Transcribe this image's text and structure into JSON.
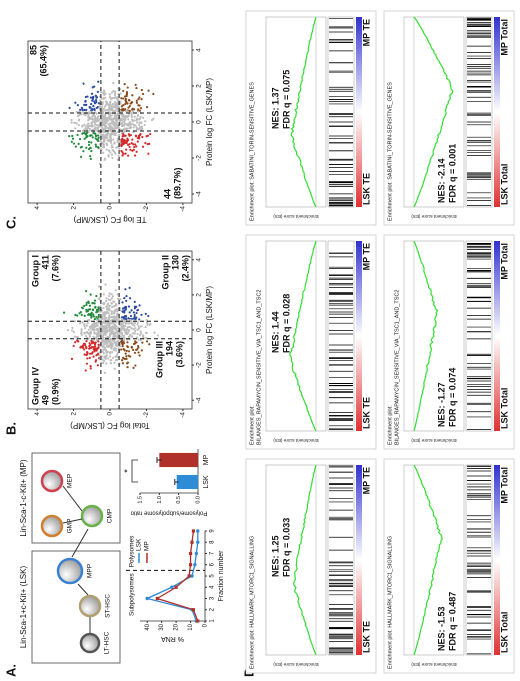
{
  "panel_labels": [
    "A.",
    "B.",
    "C.",
    "D."
  ],
  "panel_a": {
    "lsk_label": "Lin-Sca-1+c-Kit+ (LSK)",
    "mp_label": "Lin-Sca-1-c-Kit+ (MP)",
    "cells": [
      "LT-HSC",
      "ST-HSC",
      "MPP",
      "CMP",
      "GMP",
      "MEP"
    ],
    "polysome": {
      "type": "line",
      "ylabel": "% RNA",
      "xlabel": "Fraction number",
      "regions": [
        "Subpolysomes",
        "Polysomes"
      ],
      "x": [
        1,
        2,
        3,
        4,
        5,
        6,
        7,
        8,
        9
      ],
      "xlim": [
        1,
        9
      ],
      "xticks": [
        1,
        2,
        3,
        4,
        5,
        6,
        7,
        8,
        9
      ],
      "ylim": [
        0,
        45
      ],
      "yticks": [
        0,
        10,
        20,
        30,
        40
      ],
      "divider": 5.5,
      "series": [
        {
          "name": "LSK",
          "color": "#2e8bd6",
          "values": [
            6,
            9,
            40,
            23,
            9,
            7,
            6,
            5,
            5
          ]
        },
        {
          "name": "MP",
          "color": "#b0302a",
          "values": [
            5,
            8,
            33,
            20,
            11,
            10,
            10,
            9,
            8
          ]
        }
      ]
    },
    "ratio": {
      "type": "bar",
      "ylabel": "Polysome/subpolysome ratio",
      "categories": [
        "LSK",
        "MP"
      ],
      "values": [
        0.55,
        1.0
      ],
      "errors": [
        0.05,
        0.06
      ],
      "colors": [
        "#2e8bd6",
        "#b0302a"
      ],
      "ylim": [
        0,
        1.5
      ],
      "yticks": [
        {
          "value": 0,
          "label": "0.0"
        },
        {
          "value": 0.5,
          "label": "0.5"
        },
        {
          "value": 1,
          "label": "1.0"
        },
        {
          "value": 1.5,
          "label": "1.5"
        }
      ],
      "significance": "*"
    }
  },
  "panel_b": {
    "type": "scatter",
    "xlabel": "Protein log FC (LSK/MP)",
    "ylabel": "Total log FC (LSK/MP)",
    "xlim": [
      -4.5,
      4.5
    ],
    "xticks": [
      -4,
      -2,
      0,
      2,
      4
    ],
    "ylim": [
      -4.5,
      4.5
    ],
    "yticks": [
      -4,
      -2,
      0,
      2,
      4
    ],
    "groups": [
      {
        "name": "Group I",
        "count": "411",
        "pct": "(7.6%)",
        "color": "#1e8a3a"
      },
      {
        "name": "Group II",
        "count": "130",
        "pct": "(2.4%)",
        "color": "#2b4aa0"
      },
      {
        "name": "Group III",
        "count": "194",
        "pct": "(3.6%)",
        "color": "#8a4a1c"
      },
      {
        "name": "Group IV",
        "count": "49",
        "pct": "(0.9%)",
        "color": "#d42a2a"
      }
    ]
  },
  "panel_c": {
    "type": "scatter",
    "xlabel": "Protein log FC (LSK/MP)",
    "ylabel": "TE log FC (LSK/MP)",
    "xlim": [
      -4.5,
      4.5
    ],
    "xticks": [
      -4,
      -2,
      0,
      2,
      4
    ],
    "ylim": [
      -4.5,
      4.5
    ],
    "yticks": [
      -4,
      -2,
      0,
      2,
      4
    ],
    "groups": [
      {
        "count": "85",
        "pct": "(65.4%)",
        "color": "#2b4aa0"
      },
      {
        "count": "44",
        "pct": "(89.7%)",
        "color": "#d42a2a"
      }
    ]
  },
  "panel_d": {
    "ylabel": "Enrichment score (ES)",
    "plots": [
      {
        "title": [
          "Enrichment plot: HALLMARK_MTORC1_SIGNALLING"
        ],
        "nes": 1.25,
        "nes_label": "NES: 1.25",
        "fdr": "FDR q = 0.033",
        "left": "LSK TE",
        "right": "MP TE"
      },
      {
        "title": [
          "Enrichment plot:",
          "BILANGES_RAPAMYCIN_SENSITIVE_VIA_TSC1_AND_TSC2"
        ],
        "nes": 1.44,
        "nes_label": "NES: 1.44",
        "fdr": "FDR q = 0.028",
        "left": "LSK TE",
        "right": "MP TE"
      },
      {
        "title": [
          "Enrichment plot: SABATINI_TORIN-SENSITIVE_GENES"
        ],
        "nes": 1.37,
        "nes_label": "NES: 1.37",
        "fdr": "FDR q = 0.075",
        "left": "LSK TE",
        "right": "MP TE"
      },
      {
        "title": [
          "Enrichment plot: HALLMARK_MTORC1_SIGNALLING"
        ],
        "nes": -1.53,
        "nes_label": "NES: -1.53",
        "fdr": "FDR q = 0.487",
        "left": "LSK Total",
        "right": "MP Total"
      },
      {
        "title": [
          "Enrichment plot:",
          "BILANGES_RAPAMYCIN_SENSITIVE_VIA_TSC1_AND_TSC2"
        ],
        "nes": -1.27,
        "nes_label": "NES: -1.27",
        "fdr": "FDR q = 0.074",
        "left": "LSK Total",
        "right": "MP Total"
      },
      {
        "title": [
          "Enrichment plot: SABATINI_TORIN-SENSITIVE_GENES"
        ],
        "nes": -2.14,
        "nes_label": "NES: -2.14",
        "fdr": "FDR q = 0.001",
        "left": "LSK Total",
        "right": "MP Total"
      }
    ]
  }
}
